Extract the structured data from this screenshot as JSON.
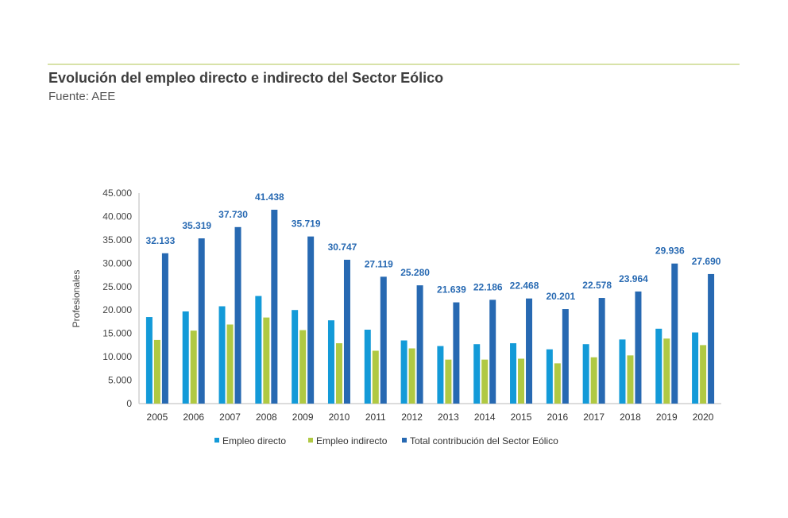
{
  "header": {
    "title": "Evolución del empleo directo e indirecto del Sector Eólico",
    "subtitle": "Fuente: AEE"
  },
  "chart_data": {
    "type": "bar",
    "ylabel": "Profesionales",
    "ylim": [
      0,
      45000
    ],
    "yticks": [
      "0",
      "5.000",
      "10.000",
      "15.000",
      "20.000",
      "25.000",
      "30.000",
      "35.000",
      "40.000",
      "45.000"
    ],
    "categories": [
      "2005",
      "2006",
      "2007",
      "2008",
      "2009",
      "2010",
      "2011",
      "2012",
      "2013",
      "2014",
      "2015",
      "2016",
      "2017",
      "2018",
      "2019",
      "2020"
    ],
    "legend_position": "bottom",
    "series": [
      {
        "name": "Empleo directo",
        "color": "#139ad8",
        "values": [
          18500,
          19700,
          20800,
          23000,
          20000,
          17800,
          15800,
          13500,
          12300,
          12700,
          12900,
          11600,
          12700,
          13700,
          16000,
          15200
        ]
      },
      {
        "name": "Empleo indirecto",
        "color": "#b0c943",
        "values": [
          13600,
          15600,
          16900,
          18400,
          15700,
          12900,
          11300,
          11800,
          9400,
          9400,
          9600,
          8600,
          9900,
          10300,
          13900,
          12500
        ]
      },
      {
        "name": "Total contribución del Sector Eólico",
        "color": "#2769b2",
        "values": [
          32133,
          35319,
          37730,
          41438,
          35719,
          30747,
          27119,
          25280,
          21639,
          22186,
          22468,
          20201,
          22578,
          23964,
          29936,
          27690
        ],
        "labels": [
          "32.133",
          "35.319",
          "37.730",
          "41.438",
          "35.719",
          "30.747",
          "27.119",
          "25.280",
          "21.639",
          "22.186",
          "22.468",
          "20.201",
          "22.578",
          "23.964",
          "29.936",
          "27.690"
        ]
      }
    ]
  }
}
